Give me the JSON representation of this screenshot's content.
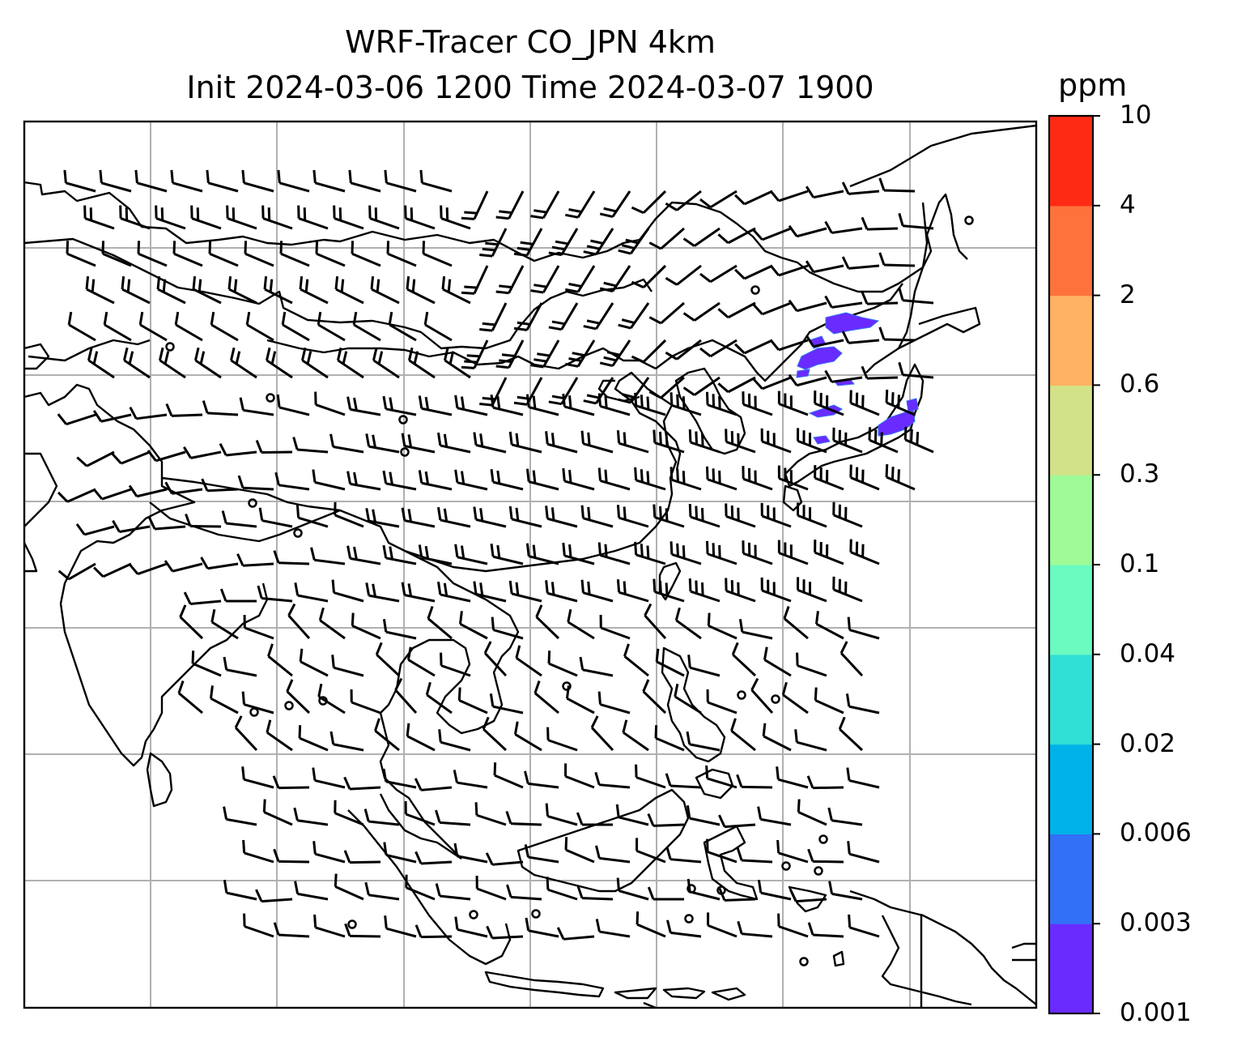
{
  "title": {
    "line1": "WRF-Tracer CO_JPN 4km",
    "line2": "Init 2024-03-06 1200 Time 2024-03-07 1900"
  },
  "colorbar": {
    "unit": "ppm",
    "tick_labels": [
      "0.001",
      "0.003",
      "0.006",
      "0.02",
      "0.04",
      "0.1",
      "0.3",
      "0.6",
      "2",
      "4",
      "10"
    ],
    "colors": [
      "#6a2bff",
      "#3270f5",
      "#00b2ea",
      "#30dfd5",
      "#6afbc1",
      "#9efb98",
      "#d2e288",
      "#ffb261",
      "#ff723c",
      "#ff2a14"
    ]
  },
  "map": {
    "grid": true,
    "background": "#ffffff",
    "gridline_color": "#b0b0b0",
    "coastline_color": "#000000",
    "tracer_color": "#6a2bff",
    "tracer_edge_color": "#3270f5"
  }
}
